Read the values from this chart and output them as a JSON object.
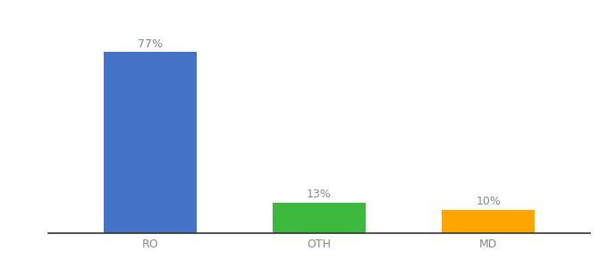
{
  "categories": [
    "RO",
    "OTH",
    "MD"
  ],
  "values": [
    77,
    13,
    10
  ],
  "bar_colors": [
    "#4472c4",
    "#3dba3d",
    "#ffa500"
  ],
  "value_labels": [
    "77%",
    "13%",
    "10%"
  ],
  "ylim": [
    0,
    90
  ],
  "background_color": "#ffffff",
  "label_fontsize": 9,
  "tick_fontsize": 9,
  "bar_width": 0.55,
  "x_positions": [
    0,
    1,
    2
  ],
  "label_color": "#888888",
  "tick_color": "#888888",
  "spine_color": "#333333"
}
